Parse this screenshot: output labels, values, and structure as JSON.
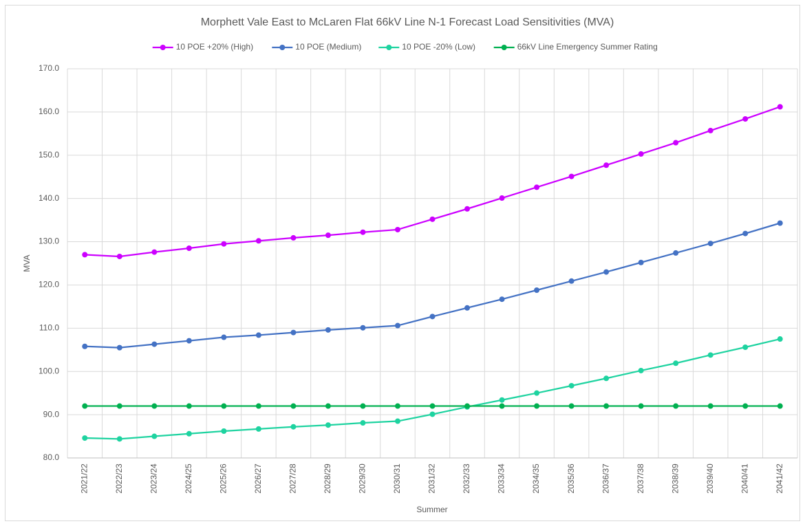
{
  "chart_data": {
    "type": "line",
    "title": "Morphett Vale East to McLaren Flat 66kV Line N-1 Forecast Load Sensitivities (MVA)",
    "x_label": "Summer",
    "y_label": "MVA",
    "categories": [
      "2021/22",
      "2022/23",
      "2023/24",
      "2024/25",
      "2025/26",
      "2026/27",
      "2027/28",
      "2028/29",
      "2029/30",
      "2030/31",
      "2031/32",
      "2032/33",
      "2033/34",
      "2034/35",
      "2035/36",
      "2036/37",
      "2037/38",
      "2038/39",
      "2039/40",
      "2040/41",
      "2041/42"
    ],
    "series": [
      {
        "name": "10 POE +20% (High)",
        "color": "#cc00ff",
        "values": [
          127.0,
          126.6,
          127.6,
          128.5,
          129.5,
          130.2,
          130.9,
          131.5,
          132.2,
          132.8,
          135.2,
          137.6,
          140.1,
          142.6,
          145.1,
          147.7,
          150.3,
          152.9,
          155.7,
          158.4,
          161.2
        ]
      },
      {
        "name": "10 POE (Medium)",
        "color": "#4472c4",
        "values": [
          105.8,
          105.5,
          106.3,
          107.1,
          107.9,
          108.4,
          109.0,
          109.6,
          110.1,
          110.6,
          112.7,
          114.7,
          116.7,
          118.8,
          120.9,
          123.0,
          125.2,
          127.4,
          129.6,
          131.9,
          134.3
        ]
      },
      {
        "name": "10 POE -20% (Low)",
        "color": "#1ed3a0",
        "values": [
          84.6,
          84.4,
          85.0,
          85.6,
          86.2,
          86.7,
          87.2,
          87.6,
          88.1,
          88.5,
          90.1,
          91.8,
          93.4,
          95.0,
          96.7,
          98.4,
          100.2,
          101.9,
          103.8,
          105.6,
          107.5
        ]
      },
      {
        "name": "66kV Line Emergency Summer Rating",
        "color": "#00b050",
        "values": [
          92,
          92,
          92,
          92,
          92,
          92,
          92,
          92,
          92,
          92,
          92,
          92,
          92,
          92,
          92,
          92,
          92,
          92,
          92,
          92,
          92
        ]
      }
    ],
    "ylim": [
      80,
      170
    ],
    "yticks": [
      {
        "value": 80,
        "label": "80.0"
      },
      {
        "value": 90,
        "label": "90.0"
      },
      {
        "value": 100,
        "label": "100.0"
      },
      {
        "value": 110,
        "label": "110.0"
      },
      {
        "value": 120,
        "label": "120.0"
      },
      {
        "value": 130,
        "label": "130.0"
      },
      {
        "value": 140,
        "label": "140.0"
      },
      {
        "value": 150,
        "label": "150.0"
      },
      {
        "value": 160,
        "label": "160.0"
      },
      {
        "value": 170,
        "label": "170.0"
      }
    ],
    "grid": true,
    "legend": "top"
  }
}
